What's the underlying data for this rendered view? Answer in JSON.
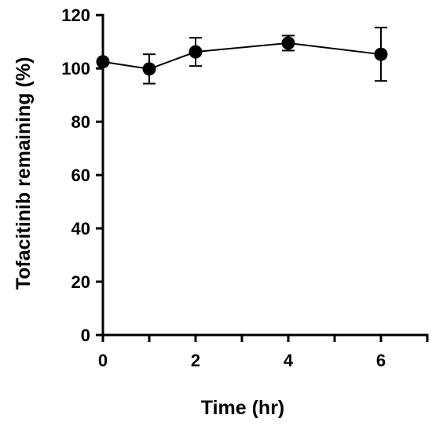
{
  "chart_data": {
    "type": "line",
    "title": "",
    "xlabel": "Time (hr)",
    "ylabel": "Tofacitinib remaining (%)",
    "xlim": [
      0,
      7
    ],
    "ylim": [
      0,
      120
    ],
    "x_ticks": [
      0,
      2,
      4,
      6
    ],
    "y_ticks": [
      0,
      20,
      40,
      60,
      80,
      100,
      120
    ],
    "grid": false,
    "legend": "none",
    "series": [
      {
        "x": [
          0,
          1,
          2,
          4,
          6
        ],
        "y": [
          102.5,
          99.8,
          106.2,
          109.5,
          105.3
        ],
        "error": [
          0,
          5.5,
          5.3,
          2.8,
          10.0
        ],
        "color": "#000000"
      }
    ]
  }
}
